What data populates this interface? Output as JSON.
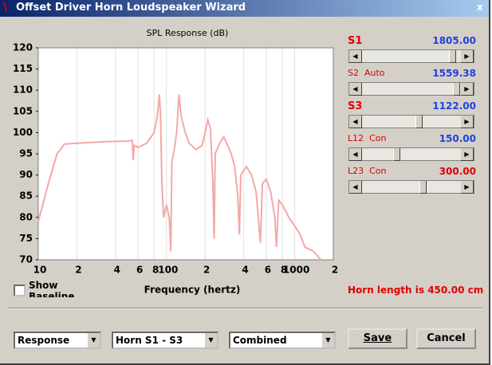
{
  "window": {
    "title": "Offset Driver Horn Loudspeaker Wizard",
    "close": "x"
  },
  "chart_data": {
    "type": "line",
    "title": "SPL Response (dB)",
    "x_label": "Frequency (hertz)",
    "log_x": true,
    "grid": "x",
    "xlim": [
      10,
      2000
    ],
    "ylim": [
      70,
      120
    ],
    "xticks": [
      10,
      {
        "value": 20,
        "label": "2"
      },
      {
        "value": 40,
        "label": "4"
      },
      {
        "value": 60,
        "label": "6"
      },
      {
        "value": 80,
        "label": "8"
      },
      100,
      {
        "value": 200,
        "label": "2"
      },
      {
        "value": 400,
        "label": "4"
      },
      {
        "value": 600,
        "label": "6"
      },
      {
        "value": 800,
        "label": "8"
      },
      1000,
      {
        "value": 2000,
        "label": "2"
      }
    ],
    "yticks": [
      70,
      75,
      80,
      85,
      90,
      95,
      100,
      105,
      110,
      115,
      120
    ],
    "series": [
      {
        "color": "#f4a8a8",
        "x": [
          10,
          12,
          14,
          16,
          20,
          30,
          50,
          54,
          55,
          56,
          60,
          70,
          80,
          85,
          88,
          90,
          92,
          95,
          100,
          105,
          108,
          110,
          115,
          120,
          125,
          130,
          140,
          150,
          170,
          190,
          200,
          210,
          220,
          230,
          235,
          240,
          260,
          280,
          300,
          320,
          340,
          360,
          370,
          380,
          420,
          460,
          500,
          520,
          540,
          560,
          600,
          650,
          700,
          720,
          750,
          800,
          900,
          1000,
          1100,
          1200,
          1400,
          1600
        ],
        "values": [
          79,
          88,
          95,
          97.3,
          97.5,
          97.8,
          98,
          98.2,
          93.5,
          97,
          96.5,
          97.5,
          100,
          104,
          109,
          104,
          88,
          80,
          83,
          80,
          72,
          93,
          96,
          100,
          109,
          104,
          100,
          97.5,
          96,
          97,
          100,
          103,
          101,
          88,
          75,
          95,
          97.5,
          99,
          97,
          95,
          92,
          85,
          76,
          90,
          92,
          90,
          86,
          80,
          74,
          88,
          89,
          86,
          80,
          73,
          84,
          83,
          80,
          78,
          76,
          73,
          72,
          70
        ]
      }
    ]
  },
  "controls": {
    "sliders": [
      {
        "label": "S1",
        "value": "1805.00"
      },
      {
        "label": "S2  Auto",
        "value": "1559.38"
      },
      {
        "label": "S3",
        "value": "1122.00"
      },
      {
        "label": "L12  Con",
        "value": "150.00"
      },
      {
        "label": "L23  Con",
        "value": "300.00"
      }
    ],
    "show_baseline": "Show Baseline",
    "horn_length": "Horn length is 450.00 cm",
    "dropdowns": [
      "Response",
      "Horn S1 - S3",
      "Combined"
    ],
    "buttons": [
      "Save",
      "Cancel"
    ]
  }
}
